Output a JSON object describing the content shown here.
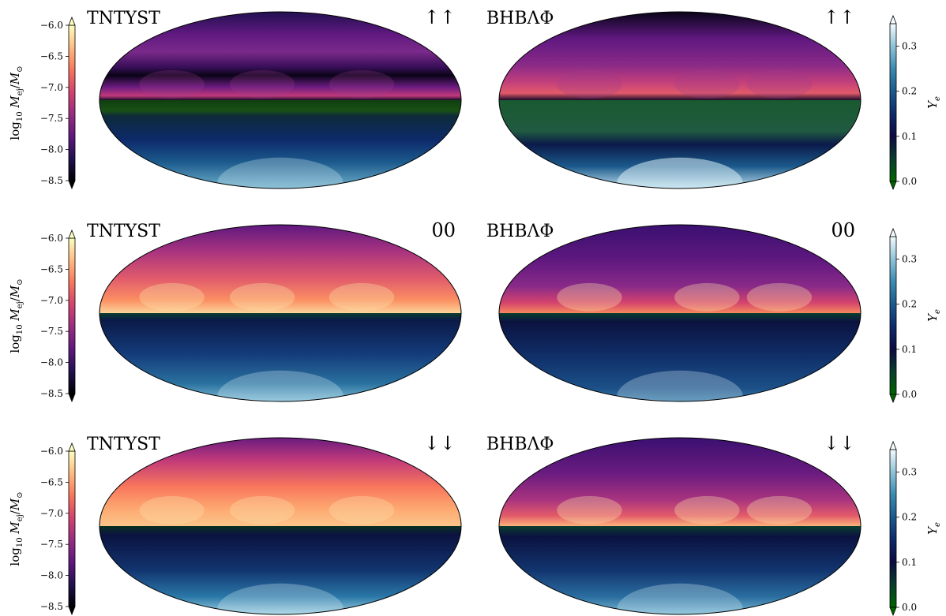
{
  "chart_data": {
    "type": "heatmap",
    "projection": "mollweide",
    "layout": "3 rows x 2 columns",
    "colorbars": {
      "left": {
        "label_prefix": "log",
        "label_sub": "10",
        "label_var": "M",
        "label_var_sub": "ej",
        "label_sep": "/",
        "label_unit": "M",
        "label_unit_sub": "⊙",
        "range": [
          -8.5,
          -6.0
        ],
        "ticks": [
          "−6.0",
          "−6.5",
          "−7.0",
          "−7.5",
          "−8.0",
          "−8.5"
        ],
        "colormap": "magma",
        "extend": "both"
      },
      "right": {
        "label": "Ye",
        "label_var": "Y",
        "label_sub": "e",
        "range": [
          0.0,
          0.35
        ],
        "ticks": [
          "0.3",
          "0.2",
          "0.1",
          "0.0"
        ],
        "colormap": "ocean-blue (green → navy → cyan → white)",
        "extend": "both"
      }
    },
    "panels": [
      {
        "row": 0,
        "eos": "TNTYST",
        "spin": "↑↑",
        "upper_hemisphere": "log10 Mej (mostly −7.8 to −6.5, dark band near equator)",
        "lower_hemisphere": "Ye ≈ 0.0 near equator to ≈ 0.25 at pole"
      },
      {
        "row": 0,
        "eos": "BHBΛΦ",
        "spin": "↑↑",
        "upper_hemisphere": "log10 Mej ≈ −7.5 to −6.5",
        "lower_hemisphere": "Ye ≈ 0.0 near equator to ≈ 0.3 at pole"
      },
      {
        "row": 1,
        "eos": "TNTYST",
        "spin": "00",
        "upper_hemisphere": "log10 Mej ≈ −7.0 to −6.0",
        "lower_hemisphere": "Ye ≈ 0.1 to 0.25"
      },
      {
        "row": 1,
        "eos": "BHBΛΦ",
        "spin": "00",
        "upper_hemisphere": "log10 Mej ≈ −7.3 to −6.2",
        "lower_hemisphere": "Ye ≈ 0.05 to 0.15"
      },
      {
        "row": 2,
        "eos": "TNTYST",
        "spin": "↓↓",
        "upper_hemisphere": "log10 Mej ≈ −6.8 to −6.0",
        "lower_hemisphere": "Ye ≈ 0.1 to 0.25"
      },
      {
        "row": 2,
        "eos": "BHBΛΦ",
        "spin": "↓↓",
        "upper_hemisphere": "log10 Mej ≈ −7.3 to −6.2",
        "lower_hemisphere": "Ye ≈ 0.05 to 0.2"
      }
    ]
  },
  "colors": {
    "magma": [
      "#000004",
      "#221150",
      "#5f187f",
      "#982d80",
      "#d3436e",
      "#f8765c",
      "#febb81",
      "#fcfdbf"
    ],
    "ocean": [
      "#006400",
      "#0a3d2e",
      "#0b0b40",
      "#0d2a6b",
      "#1b5a8c",
      "#3a8bb0",
      "#8fc4d8",
      "#f4fbff"
    ]
  }
}
